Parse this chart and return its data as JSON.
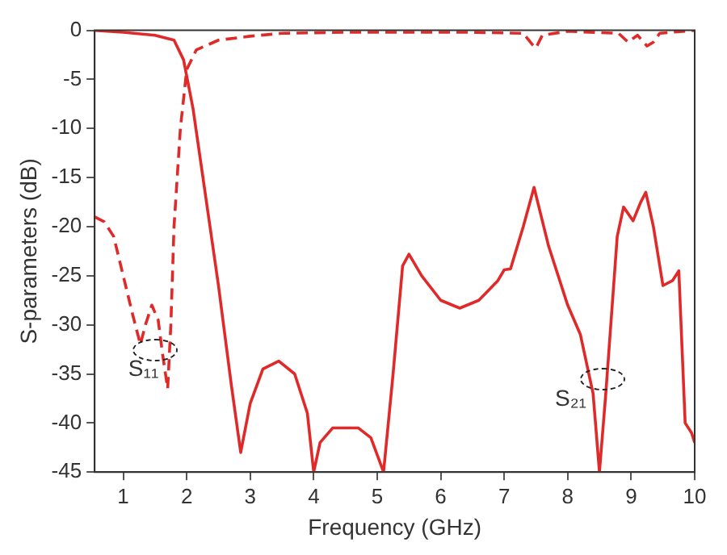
{
  "chart_data": {
    "type": "line",
    "xlabel": "Frequency (GHz)",
    "ylabel": "S-parameters (dB)",
    "xlim": [
      0.55,
      10
    ],
    "xticks": [
      1,
      2,
      3,
      4,
      5,
      6,
      7,
      8,
      9,
      10
    ],
    "ylim": [
      -45,
      0
    ],
    "yticks": [
      -45,
      -40,
      -35,
      -30,
      -25,
      -20,
      -15,
      -10,
      -5,
      0
    ],
    "legend": false,
    "annotations": [
      "S₁₁",
      "S₂₁"
    ],
    "series": [
      {
        "color": "#e02a2a",
        "line_style": "dashed",
        "x": [
          0.55,
          0.7,
          0.85,
          1.0,
          1.15,
          1.27,
          1.35,
          1.45,
          1.55,
          1.62,
          1.7,
          1.75,
          1.8,
          1.9,
          2.0,
          2.15,
          2.5,
          3.0,
          3.5,
          4.5,
          5.5,
          6.5,
          7.3,
          7.45,
          7.5,
          7.6,
          8.0,
          8.8,
          8.95,
          9.1,
          9.25,
          9.35,
          9.45,
          10
        ],
        "values": [
          -19,
          -19.5,
          -21,
          -25,
          -29,
          -32,
          -30,
          -28,
          -29.5,
          -33,
          -36.5,
          -30,
          -20,
          -10,
          -4,
          -2,
          -1,
          -0.6,
          -0.3,
          -0.2,
          -0.2,
          -0.2,
          -0.3,
          -1.5,
          -1.8,
          -0.5,
          -0.1,
          -0.3,
          -1.2,
          -0.5,
          -1.6,
          -1.2,
          -0.3,
          0
        ]
      },
      {
        "color": "#e02a2a",
        "line_style": "solid",
        "x": [
          0.55,
          1.0,
          1.5,
          1.8,
          1.95,
          2.1,
          2.3,
          2.5,
          2.7,
          2.85,
          3.0,
          3.2,
          3.45,
          3.7,
          3.9,
          4.0,
          4.1,
          4.3,
          4.7,
          4.9,
          5.1,
          5.25,
          5.4,
          5.5,
          5.7,
          6.0,
          6.3,
          6.6,
          6.9,
          7.0,
          7.1,
          7.3,
          7.47,
          7.7,
          8.0,
          8.2,
          8.4,
          8.5,
          8.6,
          8.78,
          8.88,
          9.03,
          9.15,
          9.23,
          9.35,
          9.5,
          9.65,
          9.75,
          9.85,
          9.95,
          10
        ],
        "values": [
          0,
          -0.2,
          -0.5,
          -1,
          -3,
          -8,
          -17,
          -26,
          -36,
          -43,
          -38,
          -34.5,
          -33.7,
          -35,
          -39,
          -45,
          -42,
          -40.5,
          -40.5,
          -41.5,
          -45,
          -35,
          -24,
          -22.8,
          -25,
          -27.5,
          -28.3,
          -27.5,
          -25.5,
          -24.4,
          -24.3,
          -20,
          -16,
          -22,
          -28,
          -31,
          -37,
          -45,
          -37,
          -21,
          -18,
          -19.4,
          -17.5,
          -16.5,
          -20,
          -26,
          -25.5,
          -24.5,
          -40,
          -41,
          -42
        ]
      }
    ]
  }
}
